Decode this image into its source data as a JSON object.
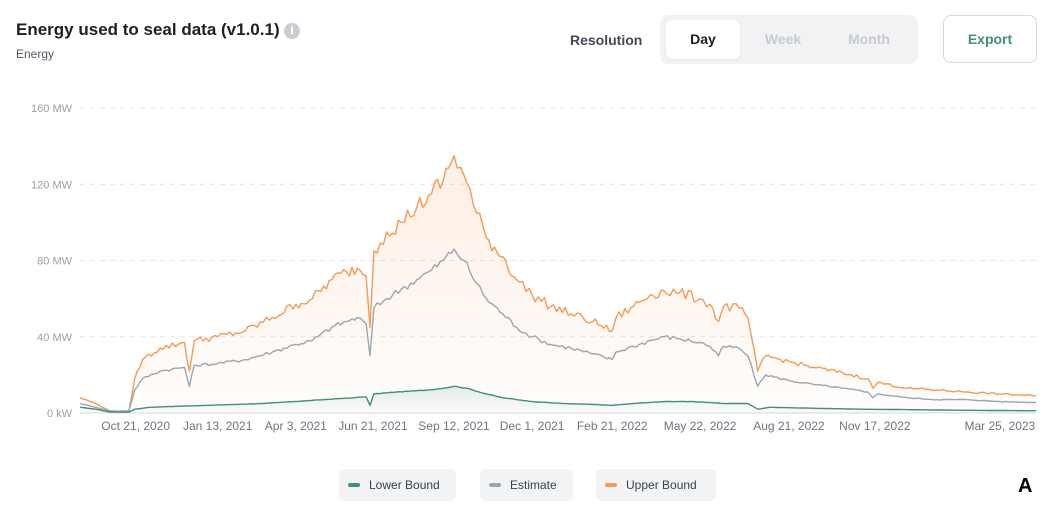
{
  "header": {
    "title": "Energy used to seal data (v1.0.1)",
    "info_icon": "info-icon",
    "subtitle": "Energy"
  },
  "controls": {
    "resolution_label": "Resolution",
    "options": [
      "Day",
      "Week",
      "Month"
    ],
    "selected": "Day",
    "export_label": "Export"
  },
  "footer": {
    "corner_label": "A"
  },
  "colors": {
    "lower": "#3f8f79",
    "estimate": "#9ea4ae",
    "upper": "#f29a57",
    "grid": "#e3e5e8",
    "axis_text": "#9aa0aa"
  },
  "chart_data": {
    "type": "line",
    "title": "Energy used to seal data (v1.0.1)",
    "ylabel": "Energy",
    "ylim": [
      0,
      160
    ],
    "y_unit": "MW",
    "y_ticks": [
      {
        "value": 0,
        "label": "0 kW"
      },
      {
        "value": 40,
        "label": "40 MW"
      },
      {
        "value": 80,
        "label": "80 MW"
      },
      {
        "value": 120,
        "label": "120 MW"
      },
      {
        "value": 160,
        "label": "160 MW"
      }
    ],
    "xlim": [
      "2020-08-25",
      "2023-05-01"
    ],
    "x_ticks": [
      {
        "date": "2020-10-21",
        "label": "Oct 21, 2020"
      },
      {
        "date": "2021-01-13",
        "label": "Jan 13, 2021"
      },
      {
        "date": "2021-04-03",
        "label": "Apr 3, 2021"
      },
      {
        "date": "2021-06-21",
        "label": "Jun 21, 2021"
      },
      {
        "date": "2021-09-12",
        "label": "Sep 12, 2021"
      },
      {
        "date": "2021-12-01",
        "label": "Dec 1, 2021"
      },
      {
        "date": "2022-02-21",
        "label": "Feb 21, 2022"
      },
      {
        "date": "2022-05-22",
        "label": "May 22, 2022"
      },
      {
        "date": "2022-08-21",
        "label": "Aug 21, 2022"
      },
      {
        "date": "2022-11-17",
        "label": "Nov 17, 2022"
      },
      {
        "date": "2023-03-25",
        "label": "Mar 25, 2023"
      }
    ],
    "grid": true,
    "legend_position": "bottom-center",
    "series": [
      {
        "name": "Lower Bound",
        "color": "#3f8f79",
        "points": [
          [
            "2020-08-25",
            3
          ],
          [
            "2020-09-10",
            2
          ],
          [
            "2020-09-25",
            0.5
          ],
          [
            "2020-10-14",
            0.5
          ],
          [
            "2020-10-20",
            2
          ],
          [
            "2020-11-05",
            3
          ],
          [
            "2020-12-01",
            3.5
          ],
          [
            "2021-01-01",
            4
          ],
          [
            "2021-02-01",
            4.5
          ],
          [
            "2021-03-01",
            5
          ],
          [
            "2021-04-01",
            6
          ],
          [
            "2021-05-01",
            7
          ],
          [
            "2021-06-01",
            8
          ],
          [
            "2021-06-14",
            8.5
          ],
          [
            "2021-06-18",
            4
          ],
          [
            "2021-06-22",
            10
          ],
          [
            "2021-07-15",
            11
          ],
          [
            "2021-08-15",
            12
          ],
          [
            "2021-09-01",
            13
          ],
          [
            "2021-09-12",
            14
          ],
          [
            "2021-09-25",
            13
          ],
          [
            "2021-10-15",
            10
          ],
          [
            "2021-11-01",
            8
          ],
          [
            "2021-12-01",
            6
          ],
          [
            "2022-01-01",
            5
          ],
          [
            "2022-02-01",
            4.5
          ],
          [
            "2022-02-21",
            4
          ],
          [
            "2022-03-15",
            5
          ],
          [
            "2022-04-15",
            6
          ],
          [
            "2022-05-15",
            6
          ],
          [
            "2022-06-15",
            5
          ],
          [
            "2022-07-10",
            5
          ],
          [
            "2022-07-20",
            2
          ],
          [
            "2022-08-01",
            3
          ],
          [
            "2022-09-15",
            2.5
          ],
          [
            "2022-11-01",
            2
          ],
          [
            "2022-12-15",
            1.8
          ],
          [
            "2023-02-01",
            1.5
          ],
          [
            "2023-03-25",
            1.3
          ],
          [
            "2023-05-01",
            1.2
          ]
        ]
      },
      {
        "name": "Estimate",
        "color": "#9ea4ae",
        "points": [
          [
            "2020-08-25",
            5
          ],
          [
            "2020-09-10",
            3
          ],
          [
            "2020-09-25",
            1
          ],
          [
            "2020-10-14",
            1
          ],
          [
            "2020-10-20",
            12
          ],
          [
            "2020-10-28",
            18
          ],
          [
            "2020-11-15",
            22
          ],
          [
            "2020-12-10",
            24
          ],
          [
            "2020-12-15",
            14
          ],
          [
            "2020-12-20",
            25
          ],
          [
            "2021-01-13",
            26
          ],
          [
            "2021-02-10",
            28
          ],
          [
            "2021-03-10",
            32
          ],
          [
            "2021-04-03",
            36
          ],
          [
            "2021-04-20",
            38
          ],
          [
            "2021-05-10",
            45
          ],
          [
            "2021-05-25",
            48
          ],
          [
            "2021-06-05",
            50
          ],
          [
            "2021-06-14",
            47
          ],
          [
            "2021-06-18",
            30
          ],
          [
            "2021-06-22",
            55
          ],
          [
            "2021-07-05",
            60
          ],
          [
            "2021-07-20",
            65
          ],
          [
            "2021-08-05",
            70
          ],
          [
            "2021-08-20",
            75
          ],
          [
            "2021-09-01",
            80
          ],
          [
            "2021-09-12",
            86
          ],
          [
            "2021-09-22",
            80
          ],
          [
            "2021-10-05",
            68
          ],
          [
            "2021-10-15",
            60
          ],
          [
            "2021-11-01",
            52
          ],
          [
            "2021-11-15",
            45
          ],
          [
            "2021-12-01",
            40
          ],
          [
            "2021-12-20",
            36
          ],
          [
            "2022-01-10",
            34
          ],
          [
            "2022-02-01",
            31
          ],
          [
            "2022-02-21",
            28
          ],
          [
            "2022-02-25",
            32
          ],
          [
            "2022-03-15",
            35
          ],
          [
            "2022-04-01",
            38
          ],
          [
            "2022-04-15",
            40
          ],
          [
            "2022-05-01",
            39
          ],
          [
            "2022-05-22",
            37
          ],
          [
            "2022-06-01",
            35
          ],
          [
            "2022-06-10",
            30
          ],
          [
            "2022-06-15",
            35
          ],
          [
            "2022-07-01",
            34
          ],
          [
            "2022-07-10",
            30
          ],
          [
            "2022-07-20",
            14
          ],
          [
            "2022-07-28",
            20
          ],
          [
            "2022-08-21",
            17
          ],
          [
            "2022-09-15",
            15
          ],
          [
            "2022-10-15",
            13
          ],
          [
            "2022-11-10",
            11
          ],
          [
            "2022-11-15",
            8
          ],
          [
            "2022-11-20",
            10
          ],
          [
            "2022-12-20",
            8
          ],
          [
            "2023-01-20",
            7
          ],
          [
            "2023-02-20",
            7
          ],
          [
            "2023-03-25",
            6
          ],
          [
            "2023-05-01",
            5.5
          ]
        ]
      },
      {
        "name": "Upper Bound",
        "color": "#f29a57",
        "points": [
          [
            "2020-08-25",
            8
          ],
          [
            "2020-09-10",
            5
          ],
          [
            "2020-09-25",
            1
          ],
          [
            "2020-10-14",
            1
          ],
          [
            "2020-10-20",
            18
          ],
          [
            "2020-10-28",
            28
          ],
          [
            "2020-11-15",
            34
          ],
          [
            "2020-12-10",
            37
          ],
          [
            "2020-12-15",
            22
          ],
          [
            "2020-12-20",
            38
          ],
          [
            "2021-01-13",
            40
          ],
          [
            "2021-02-10",
            43
          ],
          [
            "2021-03-10",
            50
          ],
          [
            "2021-04-03",
            57
          ],
          [
            "2021-04-20",
            60
          ],
          [
            "2021-05-10",
            70
          ],
          [
            "2021-05-25",
            74
          ],
          [
            "2021-06-05",
            76
          ],
          [
            "2021-06-14",
            72
          ],
          [
            "2021-06-18",
            45
          ],
          [
            "2021-06-22",
            85
          ],
          [
            "2021-07-05",
            95
          ],
          [
            "2021-07-20",
            100
          ],
          [
            "2021-08-05",
            108
          ],
          [
            "2021-08-20",
            115
          ],
          [
            "2021-09-01",
            122
          ],
          [
            "2021-09-12",
            135
          ],
          [
            "2021-09-22",
            125
          ],
          [
            "2021-10-05",
            105
          ],
          [
            "2021-10-15",
            92
          ],
          [
            "2021-11-01",
            82
          ],
          [
            "2021-11-15",
            70
          ],
          [
            "2021-12-01",
            62
          ],
          [
            "2021-12-20",
            56
          ],
          [
            "2022-01-10",
            52
          ],
          [
            "2022-02-01",
            48
          ],
          [
            "2022-02-21",
            43
          ],
          [
            "2022-02-25",
            50
          ],
          [
            "2022-03-15",
            56
          ],
          [
            "2022-04-01",
            62
          ],
          [
            "2022-04-15",
            64
          ],
          [
            "2022-05-01",
            63
          ],
          [
            "2022-05-22",
            60
          ],
          [
            "2022-06-01",
            57
          ],
          [
            "2022-06-10",
            48
          ],
          [
            "2022-06-15",
            56
          ],
          [
            "2022-07-01",
            55
          ],
          [
            "2022-07-10",
            50
          ],
          [
            "2022-07-20",
            22
          ],
          [
            "2022-07-28",
            30
          ],
          [
            "2022-08-21",
            27
          ],
          [
            "2022-09-15",
            24
          ],
          [
            "2022-10-15",
            21
          ],
          [
            "2022-11-10",
            18
          ],
          [
            "2022-11-15",
            13
          ],
          [
            "2022-11-20",
            16
          ],
          [
            "2022-12-20",
            13
          ],
          [
            "2023-01-20",
            12
          ],
          [
            "2023-02-20",
            11
          ],
          [
            "2023-03-25",
            10
          ],
          [
            "2023-05-01",
            9
          ]
        ]
      }
    ]
  }
}
